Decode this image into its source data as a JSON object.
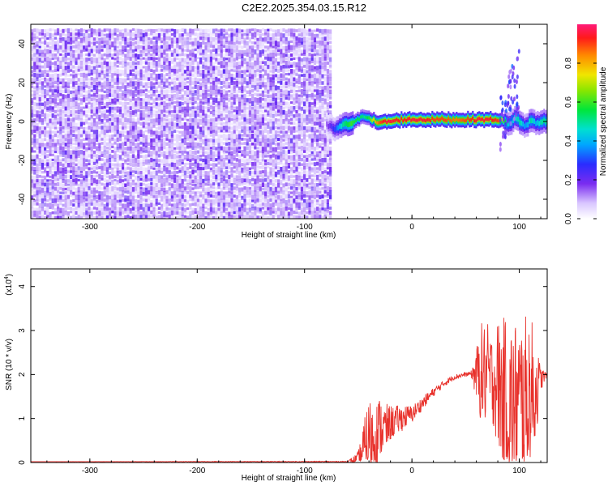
{
  "figure_title": "C2E2.2025.354.03.15.R12",
  "chart_data": [
    {
      "type": "heatmap",
      "panel": "spectrogram",
      "xlabel": "Height of straight line (km)",
      "ylabel": "Frequency (Hz)",
      "xlim": [
        -355,
        126
      ],
      "ylim": [
        -50,
        50
      ],
      "xticks": [
        -300,
        -200,
        -100,
        0,
        100
      ],
      "xtick_labels": [
        "-300",
        "-200",
        "-100",
        "0",
        "100"
      ],
      "yticks": [
        -40,
        -20,
        0,
        20,
        40
      ],
      "ytick_labels": [
        "-40",
        "-20",
        "0",
        "20",
        "40"
      ],
      "noise_region": {
        "x_from": -355,
        "x_to": -75,
        "y_from": -50,
        "y_to": 48,
        "level_range": [
          0.05,
          0.22
        ]
      },
      "signal_track": {
        "x": [
          -80,
          -72,
          -65,
          -58,
          -50,
          -45,
          -40,
          -35,
          -30,
          -25,
          -20,
          -10,
          0,
          10,
          20,
          30,
          40,
          50,
          60,
          70,
          80,
          85,
          90,
          95,
          100,
          105,
          110,
          115,
          120,
          126
        ],
        "freq": [
          -2,
          -4,
          -2,
          -1,
          1,
          3,
          2,
          0,
          -1,
          0,
          0,
          1,
          1,
          1,
          1,
          1,
          1,
          1,
          1,
          1,
          1,
          0,
          -2,
          2,
          0,
          -3,
          1,
          -1,
          0,
          0
        ],
        "amplitude": [
          0.15,
          0.3,
          0.5,
          0.6,
          0.55,
          0.5,
          0.6,
          0.8,
          0.9,
          0.95,
          0.95,
          0.92,
          0.95,
          0.95,
          0.9,
          0.9,
          0.85,
          0.9,
          0.95,
          0.95,
          0.9,
          0.6,
          0.4,
          0.45,
          0.5,
          0.35,
          0.5,
          0.4,
          0.5,
          0.5
        ]
      },
      "colorbar": {
        "label": "Normalized spectral amplitude",
        "range": [
          0,
          1
        ],
        "ticks": [
          0.0,
          0.2,
          0.4,
          0.6,
          0.8
        ],
        "tick_labels": [
          "0.0",
          "0.2",
          "0.4",
          "0.6",
          "0.8"
        ]
      }
    },
    {
      "type": "line",
      "panel": "snr",
      "xlabel": "Height of straight line (km)",
      "ylabel": "SNR (10 * v/v)",
      "scale_label": "(x10",
      "scale_exponent": "4",
      "xlim": [
        -355,
        126
      ],
      "ylim": [
        0,
        4.4
      ],
      "xticks": [
        -300,
        -200,
        -100,
        0,
        100
      ],
      "xtick_labels": [
        "-300",
        "-200",
        "-100",
        "0",
        "100"
      ],
      "yticks": [
        0,
        1,
        2,
        3,
        4
      ],
      "ytick_labels": [
        "0",
        "1",
        "2",
        "3",
        "4"
      ],
      "color": "#e8322c",
      "envelope": {
        "x": [
          -355,
          -60,
          -50,
          -45,
          -40,
          -35,
          -30,
          -25,
          -20,
          -15,
          -10,
          -5,
          0,
          10,
          20,
          30,
          40,
          50,
          55,
          60,
          65,
          70,
          75,
          80,
          85,
          90,
          95,
          100,
          105,
          110,
          115,
          120,
          126
        ],
        "base": [
          0.02,
          0.02,
          0.05,
          0.3,
          0.6,
          0.55,
          0.8,
          0.75,
          0.9,
          0.95,
          1.0,
          1.05,
          1.1,
          1.35,
          1.6,
          1.8,
          1.95,
          2.0,
          2.02,
          2.0,
          2.0,
          2.0,
          1.9,
          1.8,
          1.5,
          1.3,
          1.1,
          1.2,
          1.3,
          1.5,
          1.6,
          1.9,
          2.0
        ],
        "noise": [
          0.0,
          0.01,
          0.2,
          0.6,
          0.9,
          0.8,
          0.7,
          0.6,
          0.4,
          0.35,
          0.3,
          0.25,
          0.2,
          0.15,
          0.1,
          0.08,
          0.06,
          0.05,
          0.05,
          0.6,
          1.2,
          1.2,
          1.0,
          1.5,
          1.8,
          2.0,
          2.2,
          2.2,
          2.0,
          2.0,
          1.2,
          0.3,
          0.02
        ]
      }
    }
  ]
}
